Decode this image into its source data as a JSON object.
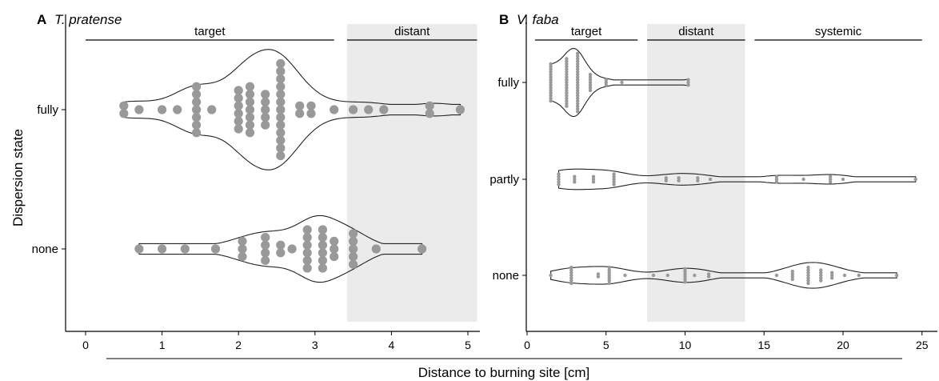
{
  "figure": {
    "shared_xlabel": "Distance to burning site [cm]",
    "ylabel": "Dispersion state"
  },
  "chart_data": [
    {
      "type": "scatter",
      "panel_label": "A",
      "title": "T. pratense",
      "categories": [
        "fully",
        "none"
      ],
      "xlim": [
        -0.2,
        5.15
      ],
      "xticks": [
        0,
        1,
        2,
        3,
        4,
        5
      ],
      "zones": [
        {
          "label": "target",
          "from": 0,
          "to": 3.25
        },
        {
          "label": "distant",
          "from": 3.42,
          "to": 5.12,
          "shaded": true
        }
      ],
      "series": [
        {
          "category": "fully",
          "points": [
            {
              "x": 0.5,
              "n": 2
            },
            {
              "x": 0.7,
              "n": 1
            },
            {
              "x": 1.0,
              "n": 1
            },
            {
              "x": 1.2,
              "n": 1
            },
            {
              "x": 1.45,
              "n": 7
            },
            {
              "x": 1.65,
              "n": 1
            },
            {
              "x": 2.0,
              "n": 6
            },
            {
              "x": 2.15,
              "n": 7
            },
            {
              "x": 2.35,
              "n": 5
            },
            {
              "x": 2.55,
              "n": 13
            },
            {
              "x": 2.8,
              "n": 2
            },
            {
              "x": 2.95,
              "n": 2
            },
            {
              "x": 3.25,
              "n": 1
            },
            {
              "x": 3.5,
              "n": 1
            },
            {
              "x": 3.7,
              "n": 1
            },
            {
              "x": 3.9,
              "n": 1
            },
            {
              "x": 4.5,
              "n": 2
            },
            {
              "x": 4.9,
              "n": 1
            }
          ]
        },
        {
          "category": "none",
          "points": [
            {
              "x": 0.7,
              "n": 1
            },
            {
              "x": 1.0,
              "n": 1
            },
            {
              "x": 1.3,
              "n": 1
            },
            {
              "x": 1.7,
              "n": 1
            },
            {
              "x": 2.05,
              "n": 3
            },
            {
              "x": 2.35,
              "n": 4
            },
            {
              "x": 2.55,
              "n": 2
            },
            {
              "x": 2.7,
              "n": 1
            },
            {
              "x": 2.9,
              "n": 6
            },
            {
              "x": 3.1,
              "n": 6
            },
            {
              "x": 3.25,
              "n": 3
            },
            {
              "x": 3.5,
              "n": 5
            },
            {
              "x": 3.8,
              "n": 1
            },
            {
              "x": 4.4,
              "n": 1
            }
          ]
        }
      ]
    },
    {
      "type": "scatter",
      "panel_label": "B",
      "title": "V. faba",
      "categories": [
        "fully",
        "partly",
        "none"
      ],
      "xlim": [
        -0.3,
        25.6
      ],
      "xticks": [
        0,
        5,
        10,
        15,
        20,
        25
      ],
      "zones": [
        {
          "label": "target",
          "from": 0.5,
          "to": 7
        },
        {
          "label": "distant",
          "from": 7.6,
          "to": 13.8,
          "shaded": true
        },
        {
          "label": "systemic",
          "from": 14.4,
          "to": 25
        }
      ],
      "series": [
        {
          "category": "fully",
          "points": [
            {
              "x": 1.5,
              "n": 15
            },
            {
              "x": 2.5,
              "n": 19
            },
            {
              "x": 3.2,
              "n": 23
            },
            {
              "x": 4.0,
              "n": 7
            },
            {
              "x": 5.0,
              "n": 3
            },
            {
              "x": 6.0,
              "n": 1
            },
            {
              "x": 10.2,
              "n": 3
            }
          ]
        },
        {
          "category": "partly",
          "points": [
            {
              "x": 2.0,
              "n": 5
            },
            {
              "x": 3.0,
              "n": 3
            },
            {
              "x": 4.2,
              "n": 3
            },
            {
              "x": 5.5,
              "n": 5
            },
            {
              "x": 8.8,
              "n": 2
            },
            {
              "x": 9.6,
              "n": 2
            },
            {
              "x": 10.8,
              "n": 2
            },
            {
              "x": 11.6,
              "n": 1
            },
            {
              "x": 15.8,
              "n": 3
            },
            {
              "x": 17.5,
              "n": 1
            },
            {
              "x": 19.2,
              "n": 3
            },
            {
              "x": 20.0,
              "n": 1
            },
            {
              "x": 24.6,
              "n": 1
            }
          ]
        },
        {
          "category": "none",
          "points": [
            {
              "x": 1.5,
              "n": 1
            },
            {
              "x": 2.8,
              "n": 7
            },
            {
              "x": 4.5,
              "n": 2
            },
            {
              "x": 5.2,
              "n": 7
            },
            {
              "x": 6.2,
              "n": 1
            },
            {
              "x": 8.0,
              "n": 1
            },
            {
              "x": 8.9,
              "n": 1
            },
            {
              "x": 10.0,
              "n": 6
            },
            {
              "x": 10.6,
              "n": 1
            },
            {
              "x": 11.5,
              "n": 2
            },
            {
              "x": 15.8,
              "n": 1
            },
            {
              "x": 16.8,
              "n": 4
            },
            {
              "x": 17.8,
              "n": 7
            },
            {
              "x": 18.6,
              "n": 5
            },
            {
              "x": 19.3,
              "n": 3
            },
            {
              "x": 20.1,
              "n": 1
            },
            {
              "x": 21.0,
              "n": 1
            },
            {
              "x": 23.4,
              "n": 1
            }
          ]
        }
      ]
    }
  ],
  "colors": {
    "points": "#999999",
    "violin_stroke": "#222222",
    "shade": "#ebebeb",
    "axis": "#000000"
  }
}
